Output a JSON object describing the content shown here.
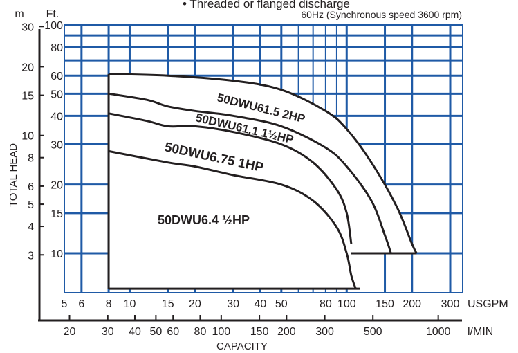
{
  "chart_data": {
    "type": "line",
    "title": "• Threaded or flanged discharge",
    "subtitle": "60Hz (Synchronous speed 3600 rpm)",
    "ylabel": "TOTAL HEAD",
    "xlabel": "CAPACITY",
    "y_units": {
      "m": "m",
      "ft": "Ft."
    },
    "x_units": {
      "usgpm": "USGPM",
      "lmin": "l/MIN"
    },
    "scale": "log-log",
    "grid": true,
    "ft_ticks": [
      "100",
      "80",
      "60",
      "50",
      "40",
      "30",
      "20",
      "15",
      "10"
    ],
    "m_ticks": [
      "30",
      "20",
      "15",
      "10",
      "8",
      "6",
      "5",
      "4",
      "3"
    ],
    "usgpm_ticks": [
      "5",
      "6",
      "8",
      "10",
      "15",
      "20",
      "30",
      "40",
      "50",
      "80",
      "100",
      "150",
      "200",
      "300"
    ],
    "lmin_ticks": [
      "20",
      "30",
      "40",
      "50",
      "60",
      "80",
      "100",
      "150",
      "200",
      "300",
      "500",
      "1000"
    ],
    "series": [
      {
        "name": "50DWU61.5 2HP",
        "x_usgpm": [
          8,
          15,
          30,
          50,
          80,
          100,
          130,
          170,
          200,
          210
        ],
        "y_ft": [
          61,
          60,
          57,
          52,
          42,
          35,
          25,
          16,
          11,
          10
        ]
      },
      {
        "name": "50DWU61.1 1½HP",
        "x_usgpm": [
          8,
          12,
          15,
          20,
          30,
          50,
          80,
          100,
          130,
          150,
          160
        ],
        "y_ft": [
          50,
          47,
          44,
          42,
          40,
          36,
          29,
          24,
          17,
          12,
          10
        ]
      },
      {
        "name": "50DWU6.75 1HP",
        "x_usgpm": [
          8,
          12,
          15,
          20,
          30,
          50,
          70,
          90,
          100,
          105
        ],
        "y_ft": [
          41,
          38,
          36,
          36,
          34,
          30,
          25,
          19,
          15,
          11
        ]
      },
      {
        "name": "50DWU6.4 ½HP",
        "x_usgpm": [
          8,
          15,
          20,
          30,
          50,
          70,
          90,
          100,
          105,
          110
        ],
        "y_ft": [
          28,
          25,
          24,
          22,
          20,
          17,
          13,
          10,
          8,
          7
        ]
      }
    ]
  }
}
